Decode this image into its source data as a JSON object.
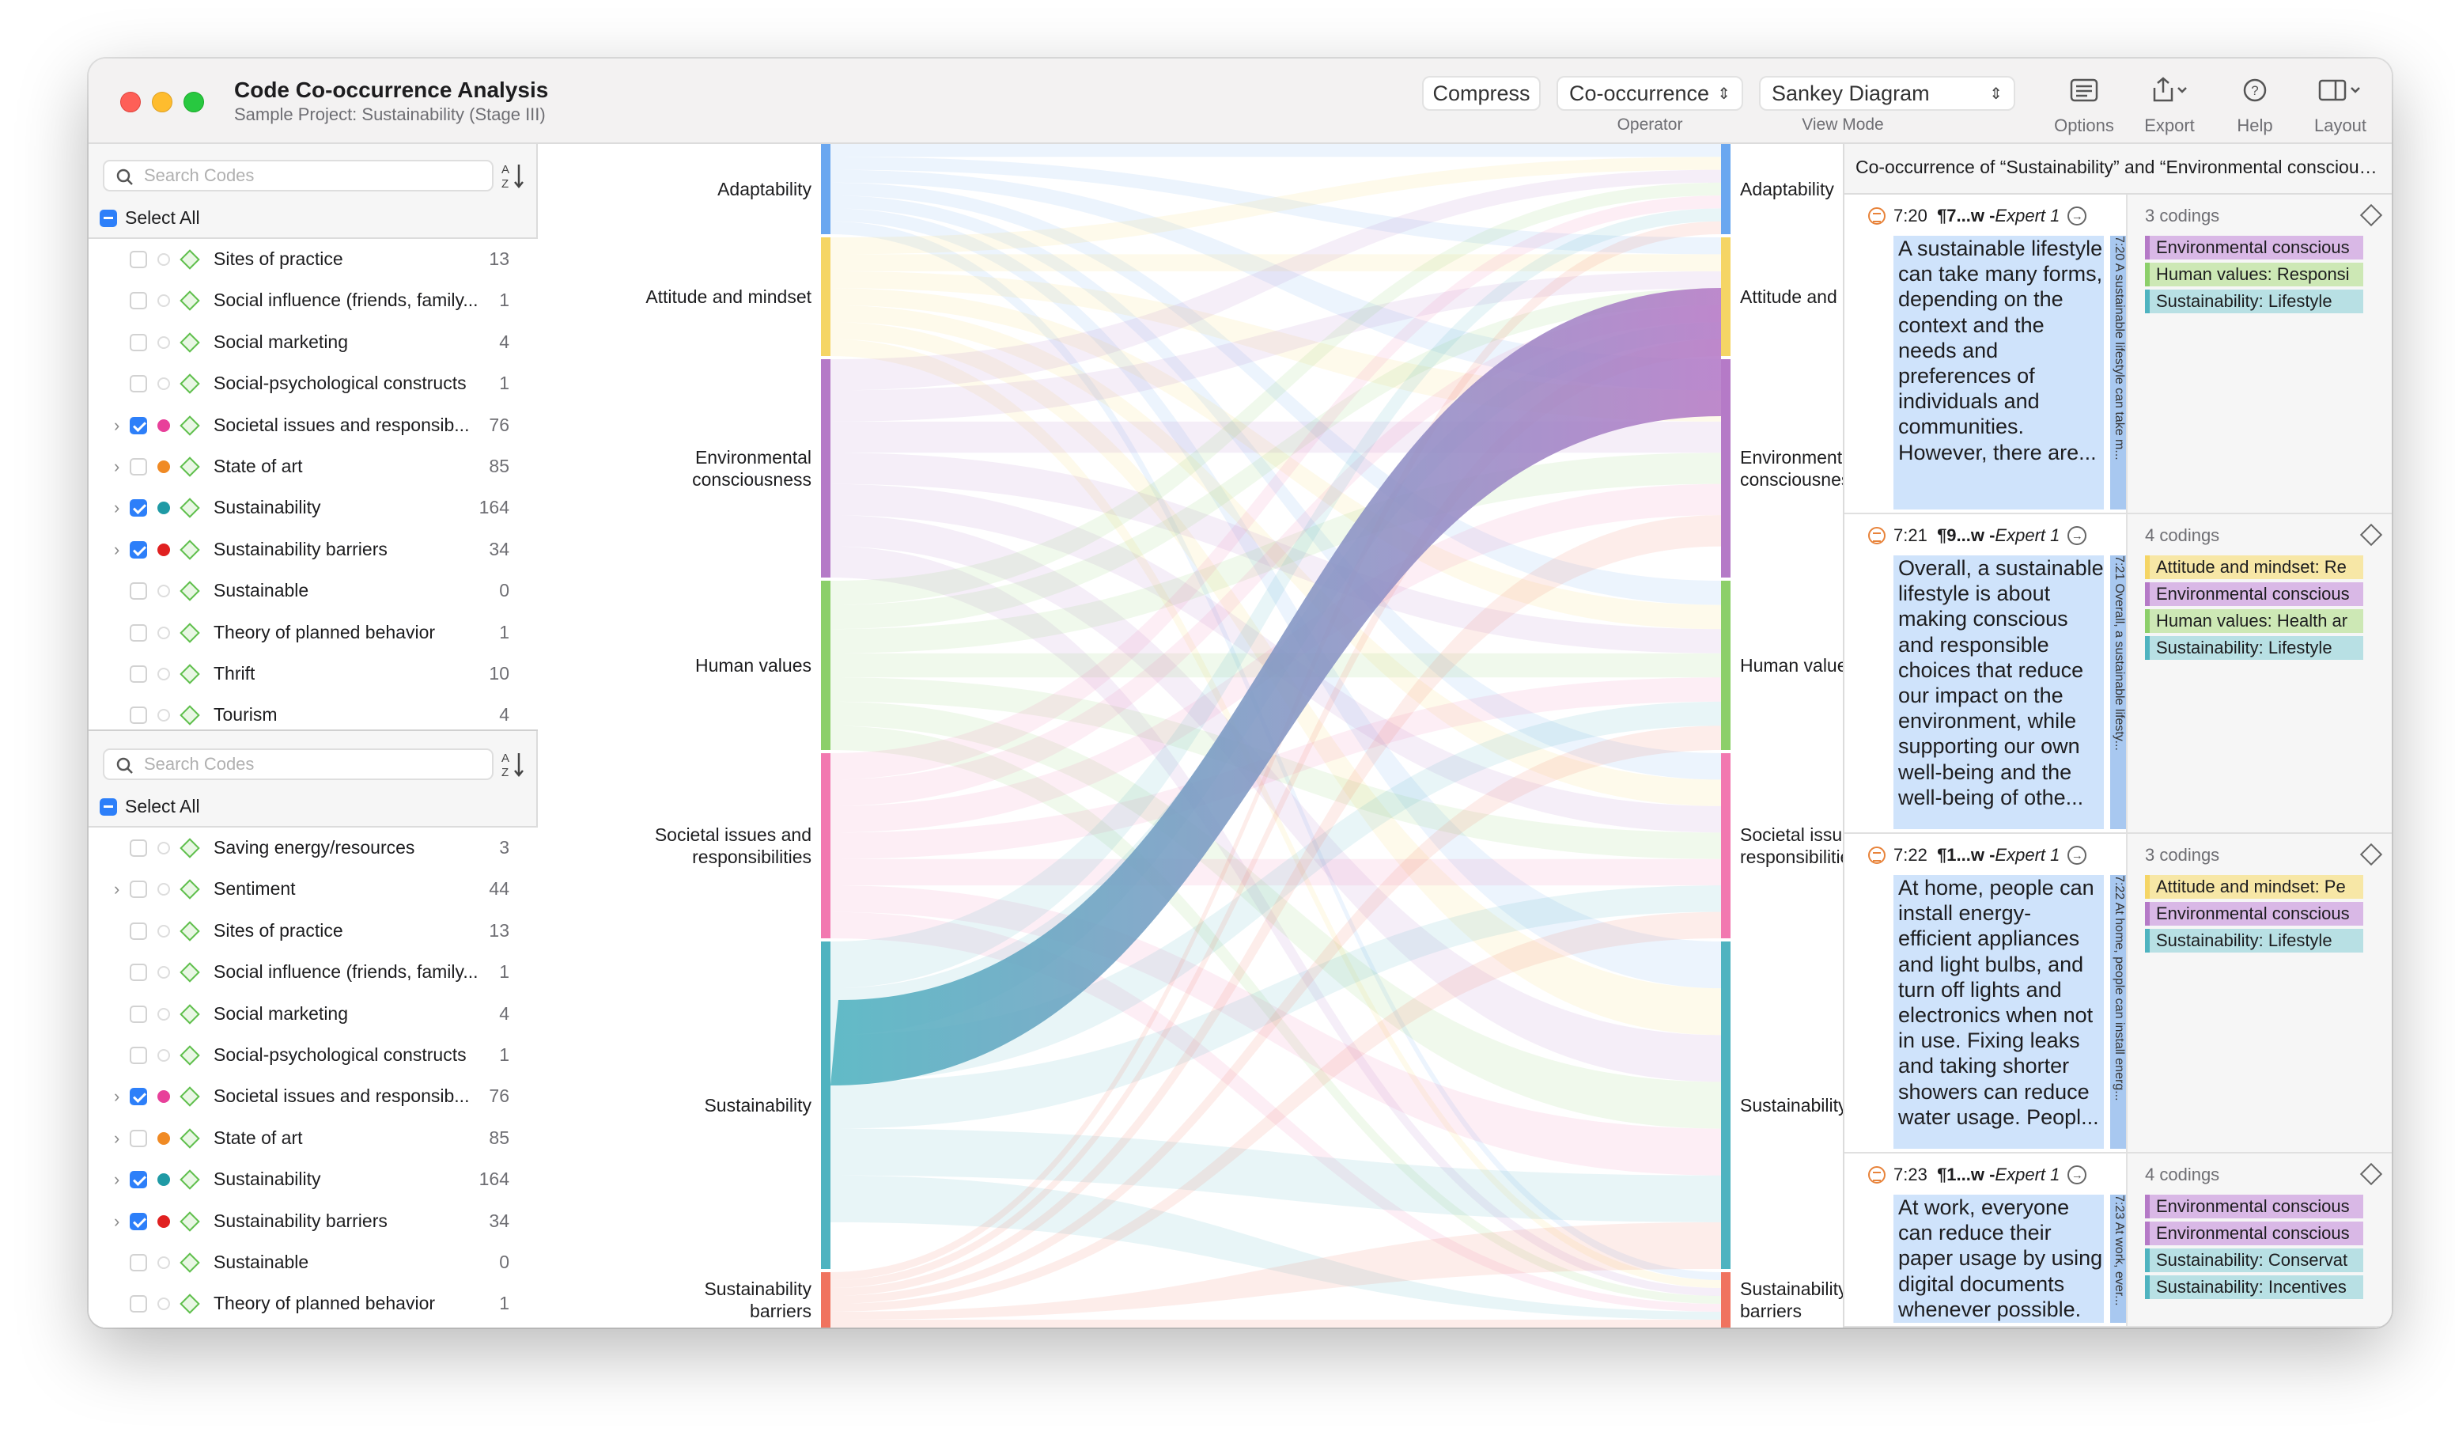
{
  "window": {
    "title": "Code Co-occurrence Analysis",
    "subtitle": "Sample Project: Sustainability (Stage III)"
  },
  "toolbar": {
    "compress_label": "Compress",
    "operator_value": "Co-occurrence",
    "operator_caption": "Operator",
    "viewmode_value": "Sankey Diagram",
    "viewmode_caption": "View Mode",
    "options_label": "Options",
    "export_label": "Export",
    "help_label": "Help",
    "layout_label": "Layout"
  },
  "left_top": {
    "search_placeholder": "Search Codes",
    "select_all": "Select All",
    "rows": [
      {
        "name": "Sites of practice",
        "count": "13",
        "checked": false,
        "dot": "",
        "expand": false
      },
      {
        "name": "Social influence (friends, family...",
        "count": "1",
        "checked": false,
        "dot": "",
        "expand": false
      },
      {
        "name": "Social marketing",
        "count": "4",
        "checked": false,
        "dot": "",
        "expand": false
      },
      {
        "name": "Social-psychological constructs",
        "count": "1",
        "checked": false,
        "dot": "",
        "expand": false
      },
      {
        "name": "Societal issues and responsib...",
        "count": "76",
        "checked": true,
        "dot": "#e8409a",
        "expand": true
      },
      {
        "name": "State of art",
        "count": "85",
        "checked": false,
        "dot": "#f08a24",
        "expand": true
      },
      {
        "name": "Sustainability",
        "count": "164",
        "checked": true,
        "dot": "#1f9aa5",
        "expand": true
      },
      {
        "name": "Sustainability barriers",
        "count": "34",
        "checked": true,
        "dot": "#e02020",
        "expand": true
      },
      {
        "name": "Sustainable",
        "count": "0",
        "checked": false,
        "dot": "",
        "expand": false
      },
      {
        "name": "Theory of planned behavior",
        "count": "1",
        "checked": false,
        "dot": "",
        "expand": false
      },
      {
        "name": "Thrift",
        "count": "10",
        "checked": false,
        "dot": "",
        "expand": false
      },
      {
        "name": "Tourism",
        "count": "4",
        "checked": false,
        "dot": "",
        "expand": false
      }
    ]
  },
  "left_bottom": {
    "search_placeholder": "Search Codes",
    "select_all": "Select All",
    "rows": [
      {
        "name": "Saving energy/resources",
        "count": "3",
        "checked": false,
        "dot": "",
        "expand": false
      },
      {
        "name": "Sentiment",
        "count": "44",
        "checked": false,
        "dot": "",
        "expand": true
      },
      {
        "name": "Sites of practice",
        "count": "13",
        "checked": false,
        "dot": "",
        "expand": false
      },
      {
        "name": "Social influence (friends, family...",
        "count": "1",
        "checked": false,
        "dot": "",
        "expand": false
      },
      {
        "name": "Social marketing",
        "count": "4",
        "checked": false,
        "dot": "",
        "expand": false
      },
      {
        "name": "Social-psychological constructs",
        "count": "1",
        "checked": false,
        "dot": "",
        "expand": false
      },
      {
        "name": "Societal issues and responsib...",
        "count": "76",
        "checked": true,
        "dot": "#e8409a",
        "expand": true
      },
      {
        "name": "State of art",
        "count": "85",
        "checked": false,
        "dot": "#f08a24",
        "expand": true
      },
      {
        "name": "Sustainability",
        "count": "164",
        "checked": true,
        "dot": "#1f9aa5",
        "expand": true
      },
      {
        "name": "Sustainability barriers",
        "count": "34",
        "checked": true,
        "dot": "#e02020",
        "expand": true
      },
      {
        "name": "Sustainable",
        "count": "0",
        "checked": false,
        "dot": "",
        "expand": false
      },
      {
        "name": "Theory of planned behavior",
        "count": "1",
        "checked": false,
        "dot": "",
        "expand": false
      }
    ]
  },
  "sankey": {
    "left_labels": [
      "Adaptability",
      "Attitude and mindset",
      "Environmental consciousness",
      "Human values",
      "Societal issues and responsibilities",
      "Sustainability",
      "Sustainability barriers"
    ],
    "right_labels": [
      "Adaptability",
      "Attitude and mindset",
      "Environmental consciousness",
      "Human values",
      "Societal issues and responsibilities",
      "Sustainability",
      "Sustainability barriers"
    ],
    "colors": [
      "#6aa7f0",
      "#f5d565",
      "#b57ac7",
      "#8ccf6a",
      "#f278b0",
      "#4fb3c0",
      "#f0735f"
    ],
    "highlight": {
      "from": "Sustainability",
      "to": "Environmental consciousness"
    }
  },
  "detail": {
    "header": "Co-occurrence of “Sustainability” and “Environmental consciousness”",
    "cards": [
      {
        "ref": "7:20",
        "para": "¶7...w - ",
        "author": "Expert 1",
        "text": "A sustainable lifestyle can take many forms, depending on the context and the needs and preferences of individuals and communities. However, there are...",
        "vertical": "7:20 A sustainable lifestyle can take m...",
        "codings_label": "3 codings",
        "tags": [
          {
            "label": "Environmental conscious",
            "color": "#d9b8e6",
            "edge": "#b57ac7"
          },
          {
            "label": "Human values: Responsi",
            "color": "#cde8b5",
            "edge": "#8ccf6a"
          },
          {
            "label": "Sustainability: Lifestyle",
            "color": "#b8e0e4",
            "edge": "#4fb3c0"
          }
        ]
      },
      {
        "ref": "7:21",
        "para": "¶9...w - ",
        "author": "Expert 1",
        "text": "Overall, a sustainable lifestyle is about making conscious and responsible choices that reduce our impact on the environment, while supporting our own well-being and the well-being of othe...",
        "vertical": "7:21 Overall, a sustainable lifesty...",
        "codings_label": "4 codings",
        "tags": [
          {
            "label": "Attitude and mindset: Re",
            "color": "#f7e7a6",
            "edge": "#f5d565"
          },
          {
            "label": "Environmental conscious",
            "color": "#d9b8e6",
            "edge": "#b57ac7"
          },
          {
            "label": "Human values: Health ar",
            "color": "#cde8b5",
            "edge": "#8ccf6a"
          },
          {
            "label": "Sustainability: Lifestyle",
            "color": "#b8e0e4",
            "edge": "#4fb3c0"
          }
        ]
      },
      {
        "ref": "7:22",
        "para": "¶1...w - ",
        "author": "Expert 1",
        "text": "At home, people can install energy-efficient appliances and light bulbs, and turn off lights and electronics when not in use. Fixing leaks and taking shorter showers can reduce water usage. Peopl...",
        "vertical": "7:22 At home, people can install energ...",
        "codings_label": "3 codings",
        "tags": [
          {
            "label": "Attitude and mindset: Pe",
            "color": "#f7e7a6",
            "edge": "#f5d565"
          },
          {
            "label": "Environmental conscious",
            "color": "#d9b8e6",
            "edge": "#b57ac7"
          },
          {
            "label": "Sustainability: Lifestyle",
            "color": "#b8e0e4",
            "edge": "#4fb3c0"
          }
        ]
      },
      {
        "ref": "7:23",
        "para": "¶1...w - ",
        "author": "Expert 1",
        "text": "At work, everyone can reduce their paper usage by using digital documents whenever possible.",
        "vertical": "7:23 At work, ever...",
        "codings_label": "4 codings",
        "tags": [
          {
            "label": "Environmental conscious",
            "color": "#d9b8e6",
            "edge": "#b57ac7"
          },
          {
            "label": "Environmental conscious",
            "color": "#d9b8e6",
            "edge": "#b57ac7"
          },
          {
            "label": "Sustainability: Conservat",
            "color": "#b8e0e4",
            "edge": "#4fb3c0"
          },
          {
            "label": "Sustainability: Incentives",
            "color": "#b8e0e4",
            "edge": "#4fb3c0"
          }
        ]
      }
    ]
  }
}
